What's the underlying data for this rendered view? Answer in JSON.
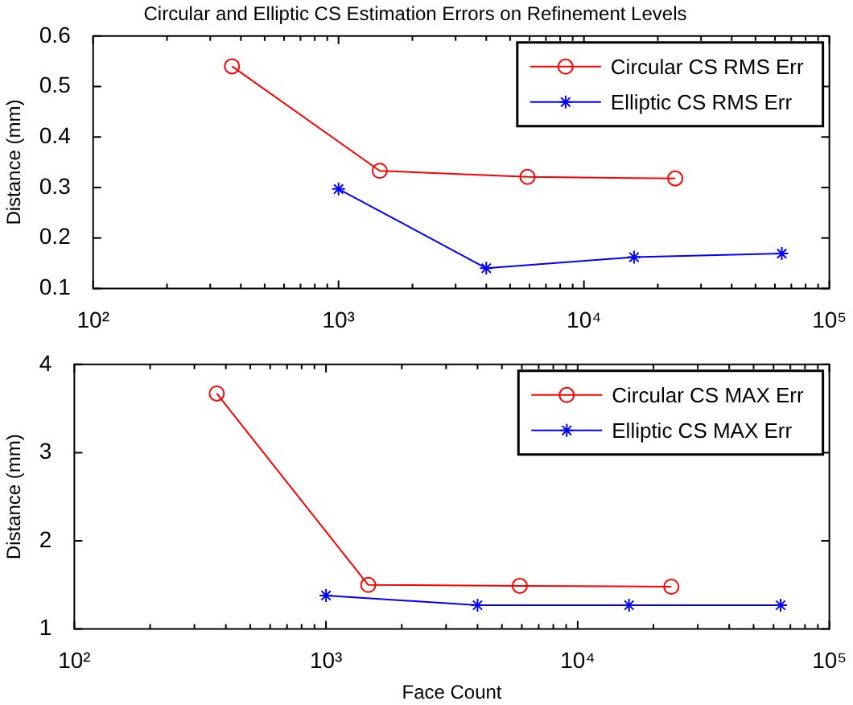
{
  "chart_data": [
    {
      "type": "line",
      "title": "Circular and Elliptic CS Estimation Errors on Refinement Levels",
      "ylabel": "Distance (mm)",
      "log": "x",
      "grid": false,
      "legend": "top right",
      "xlim": [
        100,
        100000
      ],
      "ylim": [
        0.1,
        0.6
      ],
      "xticks": [
        {
          "value": 100,
          "label": "10²"
        },
        {
          "value": 200,
          "label": null
        },
        {
          "value": 300,
          "label": null
        },
        {
          "value": 400,
          "label": null
        },
        {
          "value": 500,
          "label": null
        },
        {
          "value": 600,
          "label": null
        },
        {
          "value": 700,
          "label": null
        },
        {
          "value": 800,
          "label": null
        },
        {
          "value": 900,
          "label": null
        },
        {
          "value": 1000,
          "label": "10³"
        },
        {
          "value": 2000,
          "label": null
        },
        {
          "value": 3000,
          "label": null
        },
        {
          "value": 4000,
          "label": null
        },
        {
          "value": 5000,
          "label": null
        },
        {
          "value": 6000,
          "label": null
        },
        {
          "value": 7000,
          "label": null
        },
        {
          "value": 8000,
          "label": null
        },
        {
          "value": 9000,
          "label": null
        },
        {
          "value": 10000,
          "label": "10⁴"
        },
        {
          "value": 20000,
          "label": null
        },
        {
          "value": 30000,
          "label": null
        },
        {
          "value": 40000,
          "label": null
        },
        {
          "value": 50000,
          "label": null
        },
        {
          "value": 60000,
          "label": null
        },
        {
          "value": 70000,
          "label": null
        },
        {
          "value": 80000,
          "label": null
        },
        {
          "value": 90000,
          "label": null
        },
        {
          "value": 100000,
          "label": "10⁵"
        }
      ],
      "yticks": [
        0.1,
        0.2,
        0.3,
        0.4,
        0.5,
        0.6
      ],
      "series": [
        {
          "name": "Circular CS RMS Err",
          "color": "#ff0000",
          "marker": "circle",
          "x": [
            368,
            1472,
            5888,
            23552
          ],
          "values": [
            0.54,
            0.333,
            0.321,
            0.318
          ]
        },
        {
          "name": "Elliptic CS RMS Err",
          "color": "#0000ff",
          "marker": "cross",
          "x": [
            1000,
            4000,
            16000,
            64000
          ],
          "values": [
            0.297,
            0.14,
            0.162,
            0.169
          ]
        }
      ]
    },
    {
      "type": "line",
      "xlabel": "Face Count",
      "ylabel": "Distance (mm)",
      "log": "x",
      "grid": false,
      "legend": "top right",
      "xlim": [
        100,
        100000
      ],
      "ylim": [
        1,
        4
      ],
      "xticks": [
        {
          "value": 100,
          "label": "10²"
        },
        {
          "value": 200,
          "label": null
        },
        {
          "value": 300,
          "label": null
        },
        {
          "value": 400,
          "label": null
        },
        {
          "value": 500,
          "label": null
        },
        {
          "value": 600,
          "label": null
        },
        {
          "value": 700,
          "label": null
        },
        {
          "value": 800,
          "label": null
        },
        {
          "value": 900,
          "label": null
        },
        {
          "value": 1000,
          "label": "10³"
        },
        {
          "value": 2000,
          "label": null
        },
        {
          "value": 3000,
          "label": null
        },
        {
          "value": 4000,
          "label": null
        },
        {
          "value": 5000,
          "label": null
        },
        {
          "value": 6000,
          "label": null
        },
        {
          "value": 7000,
          "label": null
        },
        {
          "value": 8000,
          "label": null
        },
        {
          "value": 9000,
          "label": null
        },
        {
          "value": 10000,
          "label": "10⁴"
        },
        {
          "value": 20000,
          "label": null
        },
        {
          "value": 30000,
          "label": null
        },
        {
          "value": 40000,
          "label": null
        },
        {
          "value": 50000,
          "label": null
        },
        {
          "value": 60000,
          "label": null
        },
        {
          "value": 70000,
          "label": null
        },
        {
          "value": 80000,
          "label": null
        },
        {
          "value": 90000,
          "label": null
        },
        {
          "value": 100000,
          "label": "10⁵"
        }
      ],
      "yticks": [
        1,
        2,
        3,
        4
      ],
      "series": [
        {
          "name": "Circular CS MAX Err",
          "color": "#ff0000",
          "marker": "circle",
          "x": [
            368,
            1472,
            5888,
            23552
          ],
          "values": [
            3.67,
            1.5,
            1.49,
            1.48
          ]
        },
        {
          "name": "Elliptic CS MAX Err",
          "color": "#0000ff",
          "marker": "cross",
          "x": [
            1000,
            4000,
            16000,
            64000
          ],
          "values": [
            1.38,
            1.27,
            1.27,
            1.27
          ]
        }
      ]
    }
  ]
}
